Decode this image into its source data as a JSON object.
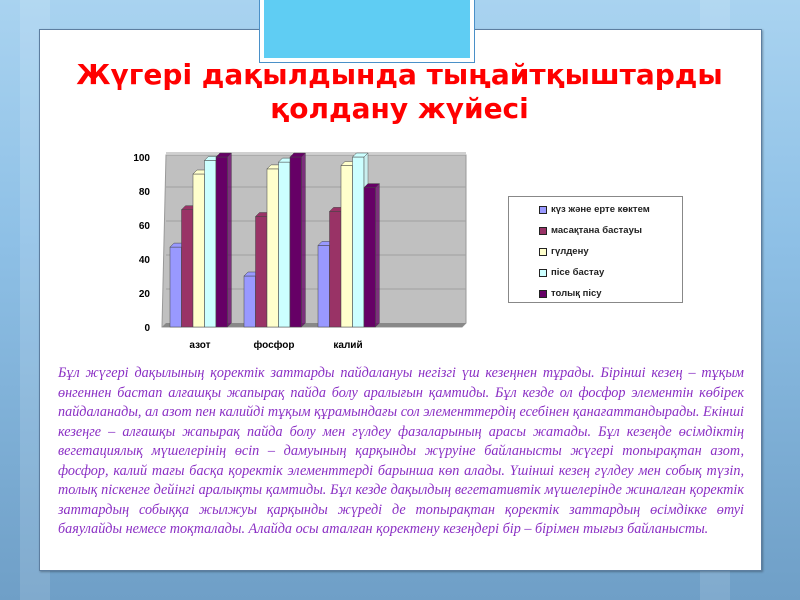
{
  "title": "Жүгері дақылдында тыңайтқыштарды қолдану жүйесі",
  "chart_data": {
    "type": "bar",
    "categories": [
      "азот",
      "фосфор",
      "калий"
    ],
    "ylim": [
      0,
      100
    ],
    "yticks": [
      "0",
      "20",
      "40",
      "60",
      "80",
      "100"
    ],
    "grid": true,
    "legend_position": "right",
    "series": [
      {
        "name": "күз және ерте көктем",
        "color": "#9999ff",
        "values": [
          47,
          30,
          48
        ]
      },
      {
        "name": "масақтана бастауы",
        "color": "#993366",
        "values": [
          69,
          65,
          68
        ]
      },
      {
        "name": "гүлдену",
        "color": "#ffffcc",
        "values": [
          90,
          93,
          95
        ]
      },
      {
        "name": "пісе бастау",
        "color": "#ccffff",
        "values": [
          98,
          97,
          100
        ]
      },
      {
        "name": "толық пісу",
        "color": "#660066",
        "values": [
          100,
          100,
          82
        ]
      }
    ]
  },
  "paragraph": "Бұл жүгері дақылының қоректік заттарды пайдалануы негізгі үш кезеңнен тұрады. Бірінші кезең – тұқым өнгеннен бастап алғашқы жапырақ пайда болу аралығын қамтиды. Бұл кезде ол фосфор элементін көбірек пайдаланады, ал азот пен калийді тұқым құрамындағы сол элементтердің есебінен қанағаттандырады. Екінші кезеңге – алғашқы жапырақ пайда болу мен гүлдеу фазаларының арасы жатады. Бұл кезеңде өсімдіктің вегетациялық мүшелерінің өсіп – дамуының қарқынды жүруіне байланысты жүгері топырақтан азот, фосфор, калий тағы басқа қоректік элементтерді барынша көп алады. Үшінші кезең гүлдеу мен собық түзіп, толық піскенге дейінгі аралықты қамтиды. Бұл кезде дақылдың вегетативтік мүшелерінде жиналған қоректік заттардың собыққа жылжуы қарқынды жүреді де топырақтан қоректік заттардың өсімдікке өтуі баяулайды немесе тоқталады. Алайда осы аталған қоректену кезеңдері бір – бірімен тығыз байланысты."
}
